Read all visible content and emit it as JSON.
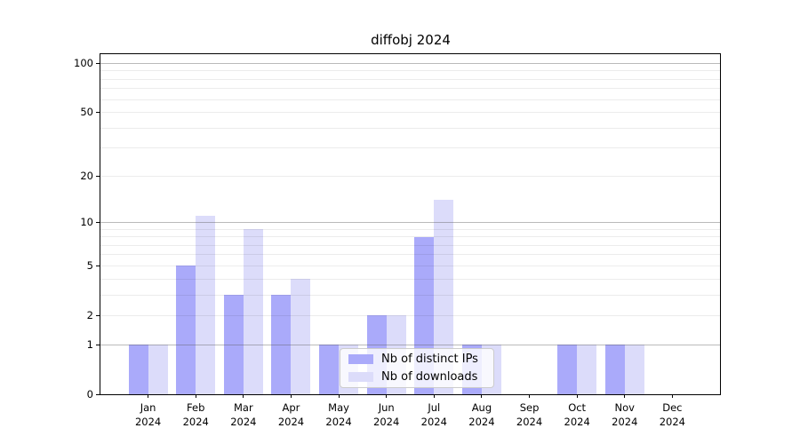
{
  "title": "diffobj 2024",
  "chart_data": {
    "type": "bar",
    "categories": [
      "Jan\n2024",
      "Feb\n2024",
      "Mar\n2024",
      "Apr\n2024",
      "May\n2024",
      "Jun\n2024",
      "Jul\n2024",
      "Aug\n2024",
      "Sep\n2024",
      "Oct\n2024",
      "Nov\n2024",
      "Dec\n2024"
    ],
    "series": [
      {
        "name": "Nb of distinct IPs",
        "color": "#aaaafa",
        "values": [
          1,
          5,
          3,
          3,
          1,
          2,
          8,
          1,
          0,
          1,
          1,
          0
        ]
      },
      {
        "name": "Nb of downloads",
        "color": "#dcdcfa",
        "values": [
          1,
          11,
          9,
          4,
          1,
          2,
          14,
          1,
          0,
          1,
          1,
          0
        ]
      }
    ],
    "title": "diffobj 2024",
    "xlabel": "",
    "ylabel": "",
    "yscale": "log1p",
    "ylim": [
      0,
      114
    ],
    "ytick_values": [
      0,
      1,
      2,
      5,
      10,
      20,
      50,
      100
    ],
    "ytick_labels": [
      "0",
      "1",
      "2",
      "5",
      "10",
      "20",
      "50",
      "100"
    ],
    "major_gridline_values": [
      1,
      10,
      100
    ],
    "minor_gridline_values": [
      2,
      3,
      4,
      5,
      6,
      7,
      8,
      9,
      20,
      30,
      40,
      50,
      60,
      70,
      80,
      90
    ],
    "grid": true,
    "legend_position": "lower center"
  },
  "colors": {
    "distinct_ips_bar": "#aaaafa",
    "downloads_bar": "#dcdcfa",
    "major_grid": "#b3b3b3",
    "minor_grid": "#ececec",
    "axis": "#000000",
    "background": "#ffffff"
  }
}
